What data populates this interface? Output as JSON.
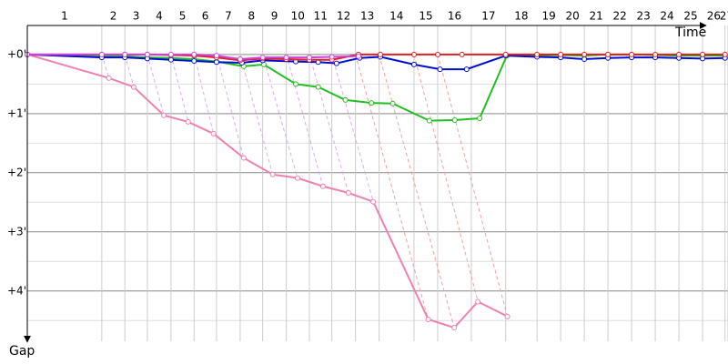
{
  "chart_data": {
    "type": "line",
    "x_label": "Time",
    "y_label": "Gap",
    "categories": [
      "1",
      "2",
      "3",
      "4",
      "5",
      "6",
      "7",
      "8",
      "9",
      "10",
      "11",
      "12",
      "13",
      "14",
      "15",
      "16",
      "17",
      "18",
      "19",
      "20",
      "21",
      "22",
      "23",
      "24",
      "25",
      "26",
      "27"
    ],
    "lap_ends": [
      1.26,
      1.65,
      2.03,
      2.43,
      2.82,
      3.2,
      3.6,
      3.98,
      4.38,
      4.77,
      5.15,
      5.55,
      5.95,
      6.54,
      6.94,
      7.51,
      8.09,
      8.62,
      9.02,
      9.42,
      9.82,
      10.22,
      10.62,
      11.02,
      11.42,
      11.8,
      11.85
    ],
    "xlim": [
      0,
      11.85
    ],
    "ylim": [
      -0.49,
      4.85
    ],
    "yticks": [
      {
        "value": 0,
        "label": "+0'"
      },
      {
        "value": 1,
        "label": "+1'"
      },
      {
        "value": 2,
        "label": "+2'"
      },
      {
        "value": 3,
        "label": "+3'"
      },
      {
        "value": 4,
        "label": "+4'"
      }
    ],
    "minor_yticks": [
      0.5,
      1.5,
      2.5,
      3.5,
      4.5
    ],
    "grid": true,
    "series": [
      {
        "color": "#f080b0",
        "x": [
          0,
          1.38,
          1.8,
          2.31,
          2.72,
          3.15,
          3.66,
          4.15,
          4.57,
          5.0,
          5.43,
          5.85,
          6.78,
          7.22,
          7.62,
          8.12
        ],
        "values": [
          0,
          0.4,
          0.55,
          1.03,
          1.14,
          1.34,
          1.75,
          2.03,
          2.09,
          2.23,
          2.34,
          2.49,
          4.48,
          4.62,
          4.18,
          4.43
        ]
      },
      {
        "color": "#20c020",
        "x": [
          0,
          1.26,
          1.65,
          2.03,
          2.43,
          2.82,
          3.2,
          3.66,
          4.0,
          4.54,
          4.92,
          5.38,
          5.82,
          6.18,
          6.8,
          7.23,
          7.65,
          8.11,
          8.62,
          9.02,
          9.42,
          9.82,
          10.22,
          10.62,
          11.02,
          11.42,
          11.8
        ],
        "values": [
          0,
          0.03,
          0.03,
          0.05,
          0.06,
          0.08,
          0.12,
          0.2,
          0.17,
          0.5,
          0.55,
          0.77,
          0.82,
          0.83,
          1.12,
          1.11,
          1.08,
          0.02,
          0.02,
          0.01,
          0.02,
          0,
          0,
          0.01,
          0.02,
          0.02,
          0.02
        ]
      },
      {
        "color": "#0010d0",
        "x": [
          0,
          1.26,
          1.65,
          2.03,
          2.43,
          2.82,
          3.2,
          3.63,
          3.98,
          4.54,
          4.92,
          5.23,
          5.62,
          5.97,
          6.54,
          6.98,
          7.43,
          8.09,
          8.62,
          9.02,
          9.42,
          9.82,
          10.22,
          10.62,
          11.02,
          11.42,
          11.8
        ],
        "values": [
          0,
          0.05,
          0.05,
          0.07,
          0.09,
          0.11,
          0.13,
          0.14,
          0.1,
          0.12,
          0.13,
          0.15,
          0.06,
          0.04,
          0.17,
          0.25,
          0.25,
          0.02,
          0.04,
          0.05,
          0.08,
          0.06,
          0.05,
          0.05,
          0.06,
          0.07,
          0.06
        ]
      },
      {
        "color": "#e02020",
        "x": [
          0,
          1.26,
          1.65,
          2.03,
          2.43,
          2.82,
          3.2,
          3.6,
          3.98,
          4.38,
          4.77,
          5.15,
          5.6,
          5.97,
          6.54,
          6.94,
          7.35,
          8.09,
          8.62,
          9.02,
          9.42,
          9.82,
          10.22,
          10.62,
          11.02,
          11.42,
          11.8
        ],
        "values": [
          0,
          0,
          0,
          0,
          0.01,
          0.02,
          0.05,
          0.1,
          0.07,
          0.08,
          0.09,
          0.09,
          0,
          0,
          0,
          0,
          0,
          0,
          0,
          0,
          0,
          0,
          0,
          0,
          0,
          0,
          0
        ]
      },
      {
        "color": "#d040e0",
        "x": [
          0,
          1.26,
          1.65,
          2.03,
          2.43,
          2.82,
          3.2,
          3.6,
          3.98,
          4.38,
          4.77,
          5.15,
          5.6
        ],
        "values": [
          0,
          0,
          0,
          0,
          0,
          0,
          0.02,
          0.08,
          0.05,
          0.05,
          0.05,
          0.04,
          0.03
        ]
      }
    ]
  }
}
